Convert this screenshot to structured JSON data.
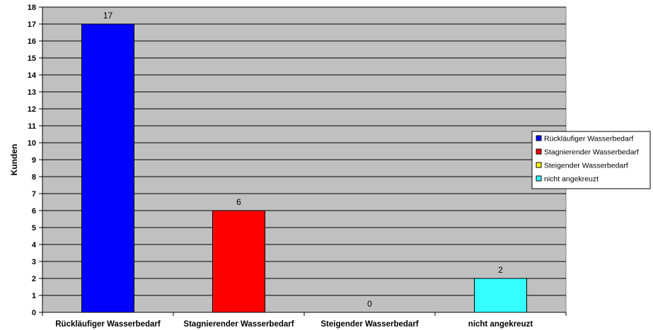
{
  "chart_data": {
    "type": "bar",
    "categories": [
      "Rückläufiger Wasserbedarf",
      "Stagnierender Wasserbedarf",
      "Steigender Wasserbedarf",
      "nicht angekreuzt"
    ],
    "values": [
      17,
      6,
      0,
      2
    ],
    "data_labels": [
      "17",
      "6",
      "0",
      "2"
    ],
    "colors": [
      "#0000ff",
      "#ff0000",
      "#ffff00",
      "#33ffff"
    ],
    "plot_background": "#c0c0c0",
    "title": "",
    "xlabel": "",
    "ylabel": "Kunden",
    "ylim": [
      0,
      18
    ],
    "yticks": [
      0,
      1,
      2,
      3,
      4,
      5,
      6,
      7,
      8,
      9,
      10,
      11,
      12,
      13,
      14,
      15,
      16,
      17,
      18
    ],
    "grid": true,
    "legend": {
      "placement": "right",
      "entries": [
        "Rückläufiger Wasserbedarf",
        "Stagnierender Wasserbedarf",
        "Steigender Wasserbedarf",
        "nicht angekreuzt"
      ]
    }
  }
}
